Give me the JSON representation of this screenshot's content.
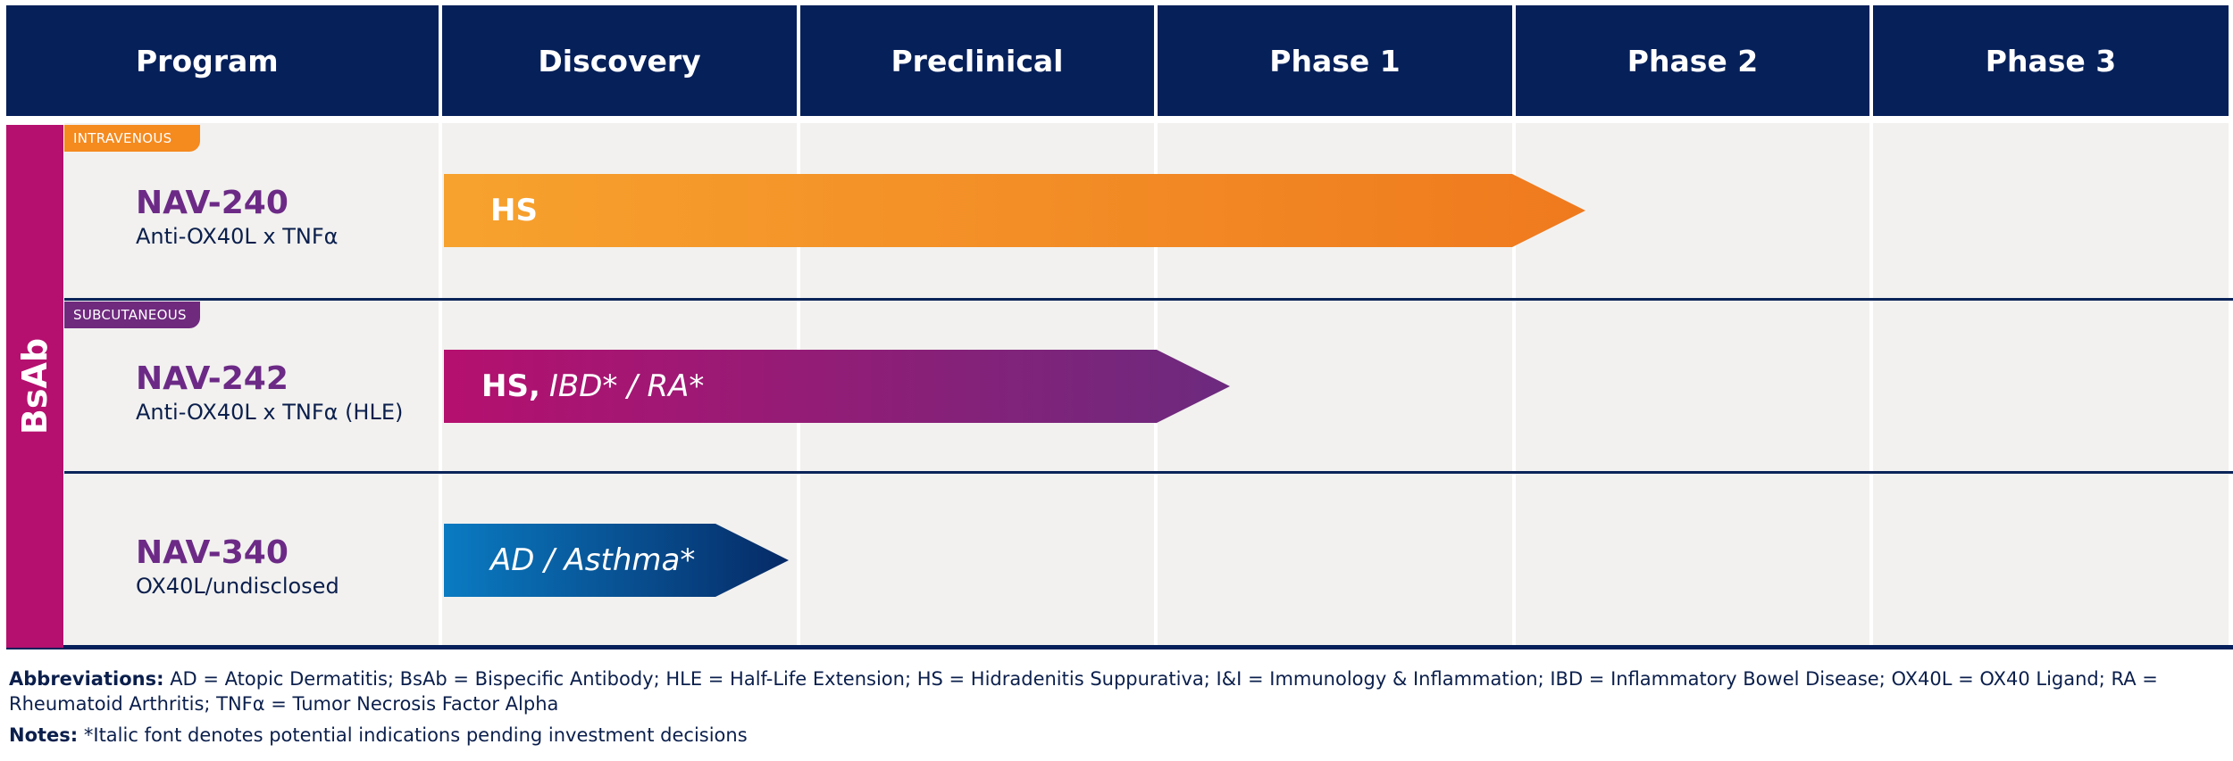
{
  "header": {
    "columns": [
      "Program",
      "Discovery",
      "Preclinical",
      "Phase 1",
      "Phase 2",
      "Phase 3"
    ]
  },
  "category": {
    "label": "BsAb",
    "color": "#b5106f"
  },
  "programs": [
    {
      "route_tag": "INTRAVENOUS",
      "route_color": "#f58a1f",
      "name": "NAV-240",
      "target": "Anti-OX40L x TNFα",
      "bold_indications": "HS",
      "italic_indications": "",
      "stage": "Phase 2",
      "progress_phases": 3.2,
      "gradient": [
        "#f7a22e",
        "#ef7a1e"
      ]
    },
    {
      "route_tag": "SUBCUTANEOUS",
      "route_color": "#6f2a7e",
      "name": "NAV-242",
      "target": "Anti-OX40L x TNFα (HLE)",
      "bold_indications": "HS,",
      "italic_indications": "IBD* / RA*",
      "stage": "Phase 1",
      "progress_phases": 2.2,
      "gradient": [
        "#b5106f",
        "#6c2a7e"
      ]
    },
    {
      "route_tag": "",
      "route_color": "",
      "name": "NAV-340",
      "target": "OX40L/undisclosed",
      "bold_indications": "",
      "italic_indications": "AD / Asthma*",
      "stage": "Discovery",
      "progress_phases": 1.0,
      "gradient": [
        "#0a7bc2",
        "#062a66"
      ]
    }
  ],
  "footnotes": {
    "abbreviations_label": "Abbreviations:",
    "abbreviations_text": "AD = Atopic Dermatitis; BsAb = Bispecific Antibody; HLE = Half-Life Extension; HS = Hidradenitis Suppurativa; I&I = Immunology & Inflammation; IBD = Inflammatory Bowel Disease; OX40L = OX40 Ligand; RA = Rheumatoid Arthritis; TNFα = Tumor Necrosis Factor Alpha",
    "notes_label": "Notes:",
    "notes_text": "*Italic font denotes potential indications pending investment decisions"
  },
  "colors": {
    "header_bg": "#06205a",
    "cell_bg": "#f2f1ef",
    "program_name": "#6c2a86"
  }
}
